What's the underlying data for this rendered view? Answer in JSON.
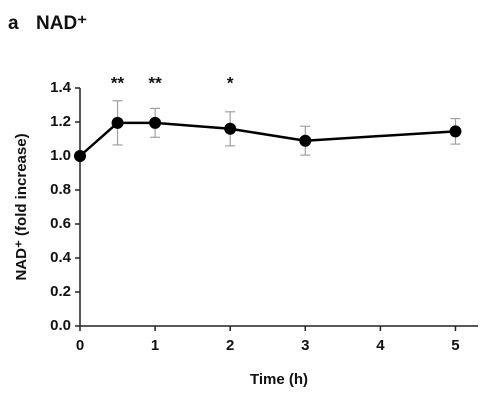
{
  "chart_data": {
    "type": "line",
    "panel_label": "a",
    "title": "NAD⁺",
    "x_label": "Time (h)",
    "y_label": "NAD⁺ (fold increase)",
    "x": [
      0,
      0.5,
      1,
      2,
      3,
      5
    ],
    "series": [
      {
        "name": "NAD⁺",
        "color": "#000000",
        "values": [
          1.0,
          1.195,
          1.195,
          1.16,
          1.09,
          1.145
        ],
        "errors": [
          0,
          0.13,
          0.085,
          0.1,
          0.085,
          0.075
        ]
      }
    ],
    "annotations": [
      {
        "x": 0.5,
        "text": "**"
      },
      {
        "x": 1,
        "text": "**"
      },
      {
        "x": 2,
        "text": "*"
      }
    ],
    "xlim": [
      0,
      5.3
    ],
    "xticks": [
      0,
      1,
      2,
      3,
      4,
      5
    ],
    "ylim": [
      0,
      1.4
    ],
    "yticks": [
      {
        "value": 0,
        "label": "0.0"
      },
      0.2,
      0.4,
      0.6,
      0.8,
      {
        "value": 1,
        "label": "1.0"
      },
      1.2,
      1.4
    ],
    "error_color": "#a0a0a0"
  }
}
